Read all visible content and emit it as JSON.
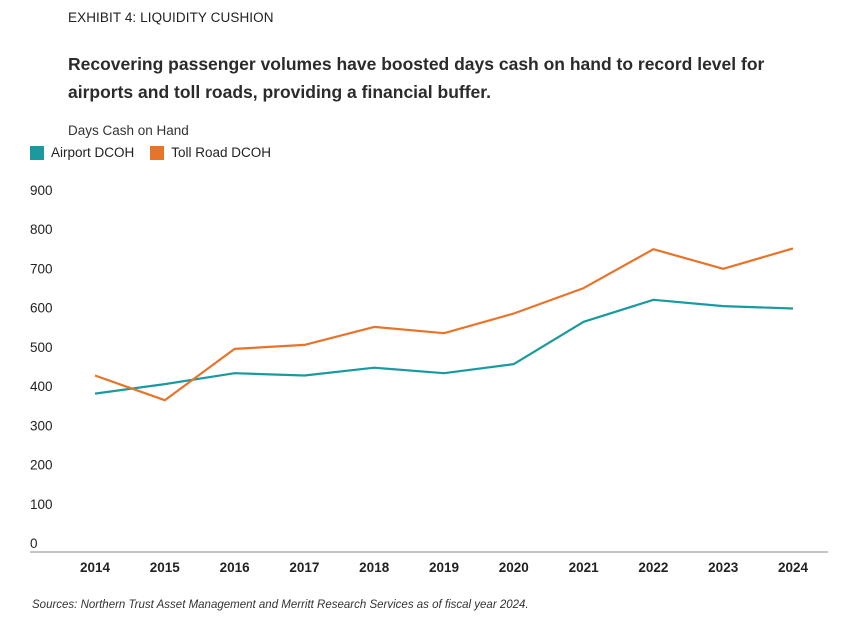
{
  "exhibit_label": "EXHIBIT 4: LIQUIDITY CUSHION",
  "headline": "Recovering passenger volumes have boosted days cash on hand to record level for airports and toll roads, providing a financial buffer.",
  "source_note": "Sources: Northern Trust Asset Management and Merritt Research Services as of fiscal year 2024.",
  "colors": {
    "airport": "#1a9a9f",
    "toll_road": "#e8742a",
    "axis": "#888888",
    "text": "#222222"
  },
  "chart_data": {
    "type": "line",
    "title": "",
    "ylabel": "Days Cash on Hand",
    "xlabel": "",
    "categories": [
      "2014",
      "2015",
      "2016",
      "2017",
      "2018",
      "2019",
      "2020",
      "2021",
      "2022",
      "2023",
      "2024"
    ],
    "ylim": [
      0,
      900
    ],
    "yticks": [
      "0",
      "100",
      "200",
      "300",
      "400",
      "500",
      "600",
      "700",
      "800",
      "900"
    ],
    "grid": false,
    "legend_position": "top-left",
    "series": [
      {
        "name": "Airport DCOH",
        "values": [
          381,
          405,
          433,
          427,
          447,
          433,
          456,
          564,
          620,
          604,
          598
        ]
      },
      {
        "name": "Toll Road DCOH",
        "values": [
          427,
          364,
          495,
          505,
          551,
          535,
          585,
          650,
          749,
          699,
          751
        ]
      }
    ]
  }
}
